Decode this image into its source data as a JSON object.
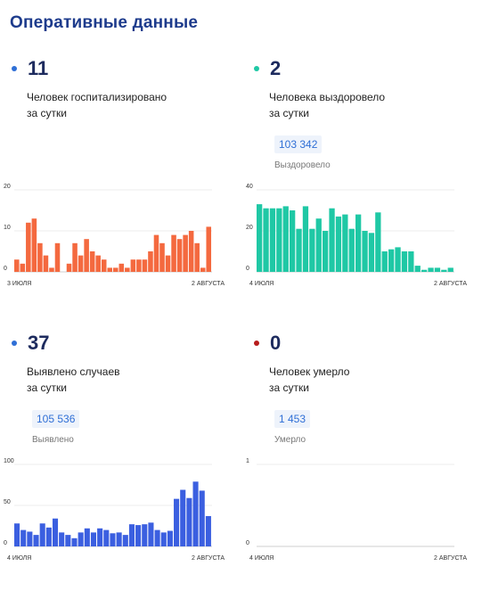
{
  "page_title": "Оперативные данные",
  "panels": [
    {
      "id": "hospitalized",
      "value": "11",
      "desc_line1": "Человек госпитализировано",
      "desc_line2": "за сутки",
      "dot_color": "#2f6fd6"
    },
    {
      "id": "recovered",
      "value": "2",
      "desc_line1": "Человека выздоровело",
      "desc_line2": "за сутки",
      "total": "103 342",
      "total_label": "Выздоровело",
      "dot_color": "#1fc8a5"
    },
    {
      "id": "cases",
      "value": "37",
      "desc_line1": "Выявлено случаев",
      "desc_line2": "за сутки",
      "total": "105 536",
      "total_label": "Выявлено",
      "dot_color": "#2f6fd6"
    },
    {
      "id": "deaths",
      "value": "0",
      "desc_line1": "Человек умерло",
      "desc_line2": "за сутки",
      "total": "1 453",
      "total_label": "Умерло",
      "dot_color": "#b71c1c"
    }
  ],
  "chart_data": [
    {
      "type": "bar",
      "color": "#f4693f",
      "x_start_label": "3 ИЮЛЯ",
      "x_end_label": "2 АВГУСТА",
      "y_ticks": [
        0,
        10,
        20
      ],
      "ylim": [
        0,
        20
      ],
      "values": [
        3,
        2,
        12,
        13,
        7,
        4,
        1,
        7,
        0,
        2,
        7,
        4,
        8,
        5,
        4,
        3,
        1,
        1,
        2,
        1,
        3,
        3,
        3,
        5,
        9,
        7,
        4,
        9,
        8,
        9,
        10,
        7,
        1,
        11
      ]
    },
    {
      "type": "bar",
      "color": "#1fc8a5",
      "x_start_label": "4 ИЮЛЯ",
      "x_end_label": "2 АВГУСТА",
      "y_ticks": [
        0,
        20,
        40
      ],
      "ylim": [
        0,
        40
      ],
      "values": [
        33,
        31,
        31,
        31,
        32,
        30,
        21,
        32,
        21,
        26,
        20,
        31,
        27,
        28,
        21,
        28,
        20,
        19,
        29,
        10,
        11,
        12,
        10,
        10,
        3,
        1,
        2,
        2,
        1,
        2
      ]
    },
    {
      "type": "bar",
      "color": "#3b5fe0",
      "x_start_label": "4 ИЮЛЯ",
      "x_end_label": "2 АВГУСТА",
      "y_ticks": [
        0,
        50,
        100
      ],
      "ylim": [
        0,
        100
      ],
      "values": [
        28,
        20,
        18,
        14,
        28,
        23,
        34,
        17,
        14,
        10,
        17,
        22,
        17,
        22,
        20,
        16,
        17,
        14,
        27,
        26,
        27,
        29,
        20,
        17,
        19,
        58,
        69,
        59,
        79,
        68,
        37
      ]
    },
    {
      "type": "bar",
      "color": "#b71c1c",
      "x_start_label": "4 ИЮЛЯ",
      "x_end_label": "2 АВГУСТА",
      "y_ticks": [
        0,
        1
      ],
      "ylim": [
        0,
        1
      ],
      "values": []
    }
  ]
}
